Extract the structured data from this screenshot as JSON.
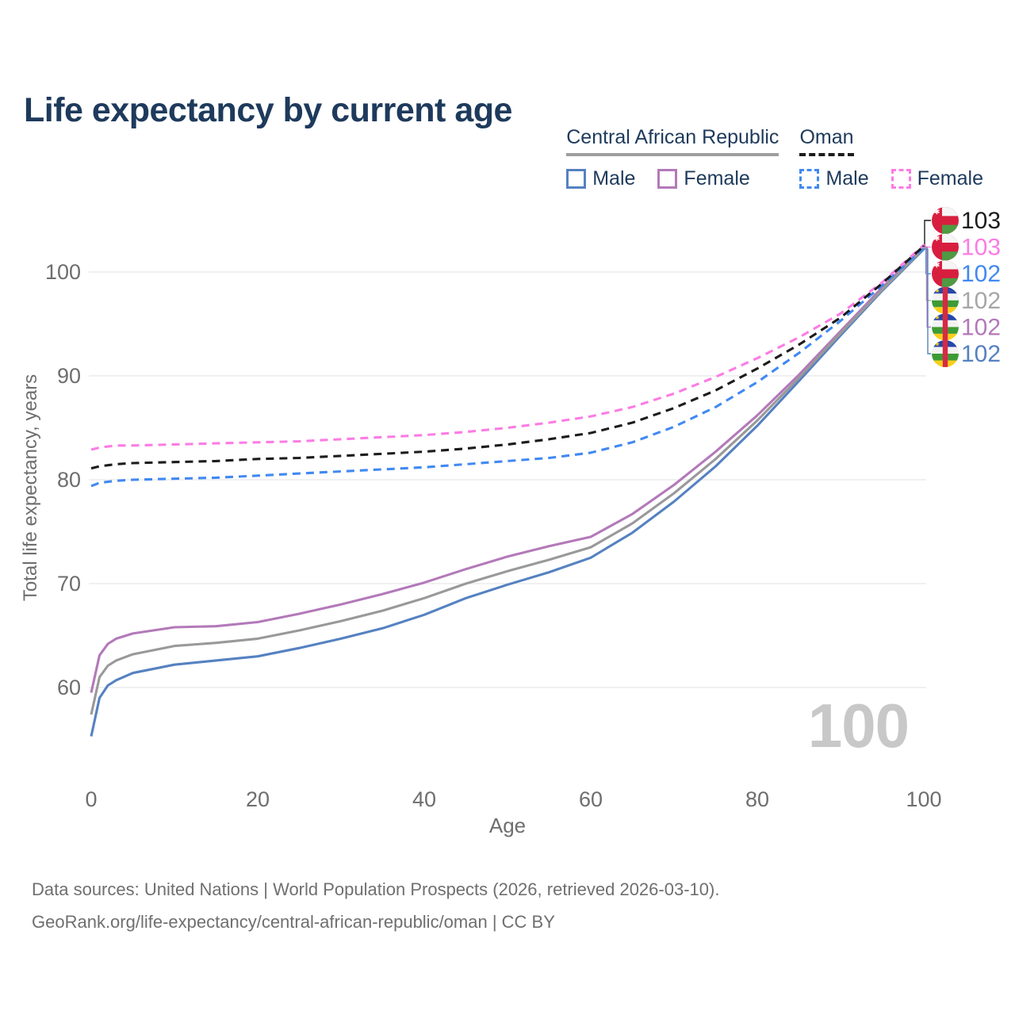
{
  "title": "Life expectancy by current age",
  "legend": {
    "groups": [
      {
        "name": "Central African Republic",
        "underline_style": "solid",
        "underline_color": "#9e9e9e",
        "items": [
          {
            "label": "Male",
            "swatch_style": "solid",
            "color": "#5581c1"
          },
          {
            "label": "Female",
            "swatch_style": "solid",
            "color": "#b379b9"
          }
        ]
      },
      {
        "name": "Oman",
        "underline_style": "dashed",
        "underline_color": "#1c1c1c",
        "items": [
          {
            "label": "Male",
            "swatch_style": "dashed",
            "color": "#4189f1"
          },
          {
            "label": "Female",
            "swatch_style": "dashed",
            "color": "#fb7ce4"
          }
        ]
      }
    ]
  },
  "watermark_age": "100",
  "footer": {
    "line1": "Data sources: United Nations | World Population Prospects (2026, retrieved 2026-03-10).",
    "line2": "GeoRank.org/life-expectancy/central-african-republic/oman | CC BY"
  },
  "chart_data": {
    "type": "line",
    "title": "Life expectancy by current age",
    "xlabel": "Age",
    "ylabel": "Total life expectancy, years",
    "xlim": [
      0,
      100
    ],
    "ylim": [
      55,
      104
    ],
    "x_ticks": [
      0,
      20,
      40,
      60,
      80,
      100
    ],
    "y_ticks": [
      100,
      90,
      80,
      70,
      60
    ],
    "grid": "horizontal",
    "legend_position": "top-right",
    "x": [
      0,
      1,
      2,
      3,
      5,
      10,
      15,
      20,
      25,
      30,
      35,
      40,
      45,
      50,
      55,
      60,
      65,
      70,
      75,
      80,
      85,
      90,
      95,
      100
    ],
    "series": [
      {
        "name": "Central African Republic Male",
        "country": "Central African Republic",
        "sex": "male",
        "style": "solid",
        "color": "#5581c1",
        "values": [
          55.3,
          59.0,
          60.2,
          60.7,
          61.4,
          62.2,
          62.6,
          63.0,
          63.8,
          64.7,
          65.7,
          67.0,
          68.6,
          69.9,
          71.1,
          72.5,
          74.9,
          77.9,
          81.3,
          85.2,
          89.5,
          93.9,
          98.2,
          102.2
        ]
      },
      {
        "name": "Central African Republic Female",
        "country": "Central African Republic",
        "sex": "female",
        "style": "solid",
        "color": "#b379b9",
        "values": [
          59.5,
          63.1,
          64.2,
          64.7,
          65.2,
          65.8,
          65.9,
          66.3,
          67.1,
          68.0,
          69.0,
          70.1,
          71.4,
          72.6,
          73.6,
          74.5,
          76.7,
          79.5,
          82.7,
          86.2,
          90.1,
          94.3,
          98.5,
          102.4
        ]
      },
      {
        "name": "Central African Republic Both sexes",
        "country": "Central African Republic",
        "sex": "both",
        "style": "solid",
        "color": "#999999",
        "values": [
          57.4,
          61.0,
          62.1,
          62.6,
          63.2,
          64.0,
          64.3,
          64.7,
          65.5,
          66.4,
          67.4,
          68.6,
          70.0,
          71.2,
          72.3,
          73.5,
          75.8,
          78.7,
          82.0,
          85.7,
          89.8,
          94.1,
          98.3,
          102.3
        ]
      },
      {
        "name": "Oman Male",
        "country": "Oman",
        "sex": "male",
        "style": "dashed",
        "color": "#4189f1",
        "values": [
          79.4,
          79.7,
          79.8,
          79.9,
          80.0,
          80.1,
          80.2,
          80.4,
          80.6,
          80.8,
          81.0,
          81.2,
          81.5,
          81.8,
          82.1,
          82.6,
          83.6,
          85.1,
          87.0,
          89.4,
          92.2,
          95.3,
          98.7,
          102.3
        ]
      },
      {
        "name": "Oman Female",
        "country": "Oman",
        "sex": "female",
        "style": "dashed",
        "color": "#fb7ce4",
        "values": [
          82.9,
          83.1,
          83.2,
          83.3,
          83.3,
          83.4,
          83.5,
          83.6,
          83.7,
          83.9,
          84.1,
          84.3,
          84.6,
          85.0,
          85.5,
          86.1,
          87.0,
          88.3,
          89.9,
          91.7,
          93.7,
          96.0,
          99.0,
          102.6
        ]
      },
      {
        "name": "Oman Both sexes",
        "country": "Oman",
        "sex": "both",
        "style": "dashed",
        "color": "#1c1c1c",
        "values": [
          81.1,
          81.3,
          81.4,
          81.5,
          81.6,
          81.7,
          81.8,
          82.0,
          82.1,
          82.3,
          82.5,
          82.7,
          83.0,
          83.4,
          83.9,
          84.5,
          85.5,
          86.9,
          88.6,
          90.7,
          93.0,
          95.6,
          98.9,
          102.5
        ]
      }
    ],
    "end_labels": [
      {
        "flag": "oman",
        "value": "103",
        "color": "#1c1c1c",
        "series": "Oman Both sexes"
      },
      {
        "flag": "oman",
        "value": "103",
        "color": "#fb7ce4",
        "series": "Oman Female"
      },
      {
        "flag": "oman",
        "value": "102",
        "color": "#4189f1",
        "series": "Oman Male"
      },
      {
        "flag": "car",
        "value": "102",
        "color": "#a6a6a6",
        "series": "Central African Republic Both sexes"
      },
      {
        "flag": "car",
        "value": "102",
        "color": "#b379b9",
        "series": "Central African Republic Female"
      },
      {
        "flag": "car",
        "value": "102",
        "color": "#5581c1",
        "series": "Central African Republic Male"
      }
    ]
  }
}
